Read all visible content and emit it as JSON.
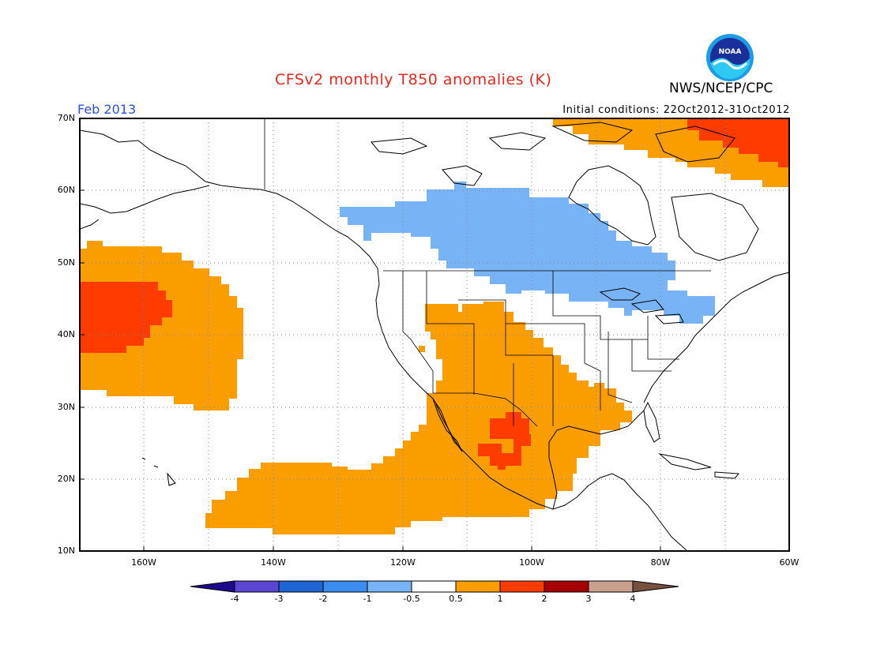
{
  "header": {
    "title": "CFSv2 monthly T850 anomalies (K)",
    "org": "NWS/NCEP/CPC",
    "month": "Feb 2013",
    "initial_conditions": "Initial conditions: 22Oct2012-31Oct2012",
    "logo_text": "NOAA"
  },
  "axes": {
    "lat_labels": [
      "70N",
      "60N",
      "50N",
      "40N",
      "30N",
      "20N",
      "10N"
    ],
    "lon_labels": [
      "160W",
      "140W",
      "120W",
      "100W",
      "80W",
      "60W"
    ]
  },
  "legend": {
    "labels": [
      "-4",
      "-3",
      "-2",
      "-1",
      "-0.5",
      "0.5",
      "1",
      "2",
      "3",
      "4"
    ],
    "colors": [
      "#1e0a8c",
      "#5a46d2",
      "#1e64d2",
      "#3c8cf0",
      "#78b4f5",
      "#ffffff",
      "#fa9e00",
      "#ff3c00",
      "#a50000",
      "#c8a08c",
      "#785040"
    ]
  }
}
